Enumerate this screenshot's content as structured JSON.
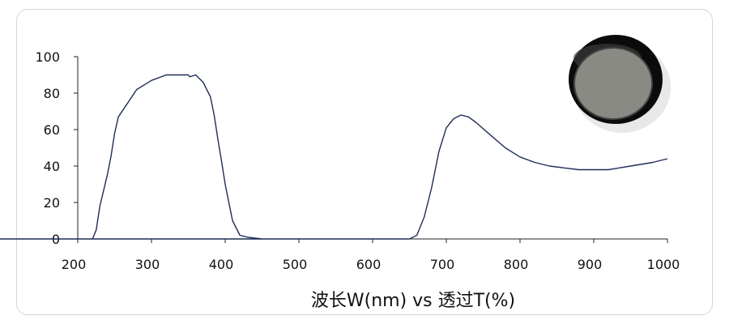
{
  "chart_data": {
    "type": "line",
    "title": "",
    "xlabel": "波长W(nm) vs 透过T(%)",
    "ylabel": "",
    "xlim": [
      200,
      1000
    ],
    "ylim": [
      0,
      100
    ],
    "x_ticks": [
      "200",
      "300",
      "400",
      "500",
      "600",
      "700",
      "800",
      "900",
      "1000"
    ],
    "y_ticks": [
      "0",
      "20",
      "40",
      "60",
      "80",
      "100"
    ],
    "grid": false,
    "line_color": "#1f2d57",
    "series": [
      {
        "name": "",
        "points": [
          [
            220,
            0
          ],
          [
            225,
            5
          ],
          [
            230,
            18
          ],
          [
            240,
            35
          ],
          [
            245,
            45
          ],
          [
            250,
            58
          ],
          [
            255,
            67
          ],
          [
            265,
            73
          ],
          [
            280,
            82
          ],
          [
            300,
            87
          ],
          [
            320,
            90
          ],
          [
            350,
            90
          ],
          [
            352,
            89
          ],
          [
            360,
            90
          ],
          [
            370,
            86
          ],
          [
            380,
            78
          ],
          [
            385,
            68
          ],
          [
            390,
            55
          ],
          [
            395,
            43
          ],
          [
            400,
            30
          ],
          [
            405,
            20
          ],
          [
            410,
            10
          ],
          [
            420,
            2
          ],
          [
            430,
            1
          ],
          [
            450,
            0
          ],
          [
            1,
            0
          ],
          [
            650,
            0
          ],
          [
            660,
            2
          ],
          [
            670,
            12
          ],
          [
            680,
            28
          ],
          [
            690,
            48
          ],
          [
            700,
            61
          ],
          [
            710,
            66
          ],
          [
            720,
            68
          ],
          [
            730,
            67
          ],
          [
            740,
            64
          ],
          [
            760,
            57
          ],
          [
            780,
            50
          ],
          [
            800,
            45
          ],
          [
            820,
            42
          ],
          [
            840,
            40
          ],
          [
            860,
            39
          ],
          [
            880,
            38
          ],
          [
            900,
            38
          ],
          [
            920,
            38
          ],
          [
            950,
            40
          ],
          [
            980,
            42
          ],
          [
            1000,
            44
          ]
        ]
      }
    ]
  },
  "image": {
    "name": "optical filter photo",
    "rim_color": "#0b0b0b",
    "glass_color": "#8a8a84"
  }
}
